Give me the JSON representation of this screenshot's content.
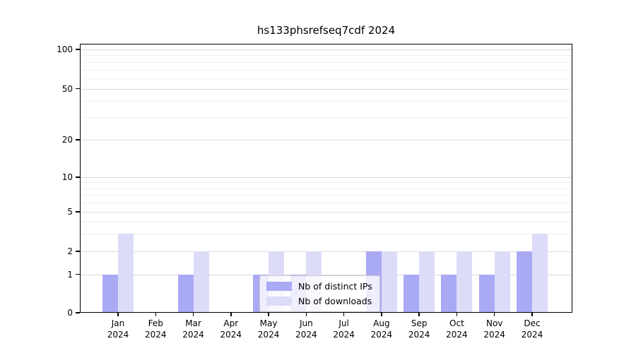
{
  "chart_data": {
    "type": "bar",
    "title": "hs133phsrefseq7cdf 2024",
    "categories": [
      "Jan",
      "Feb",
      "Mar",
      "Apr",
      "May",
      "Jun",
      "Jul",
      "Aug",
      "Sep",
      "Oct",
      "Nov",
      "Dec"
    ],
    "year_label": "2024",
    "series": [
      {
        "name": "Nb of distinct IPs",
        "color": "#a9a9f4",
        "values": [
          1,
          0,
          1,
          0,
          1,
          1,
          0,
          2,
          1,
          1,
          1,
          2
        ]
      },
      {
        "name": "Nb of downloads",
        "color": "#dcdcf9",
        "values": [
          3,
          0,
          2,
          0,
          2,
          2,
          0,
          2,
          2,
          2,
          2,
          3
        ]
      }
    ],
    "yticks": [
      0,
      1,
      2,
      5,
      10,
      20,
      50,
      100
    ],
    "yticks_minor": [
      3,
      4,
      6,
      7,
      8,
      9,
      30,
      40,
      60,
      70,
      80,
      90
    ],
    "yscale": "symlog",
    "ylim": [
      0,
      110
    ],
    "xlabel": "",
    "ylabel": "",
    "grid": true,
    "legend_position": "lower center"
  },
  "colors": {
    "background": "#ffffff",
    "axis": "#000000",
    "grid_major": "#d9d9d9",
    "grid_minor": "#efefef",
    "legend_border": "#cccccc"
  }
}
